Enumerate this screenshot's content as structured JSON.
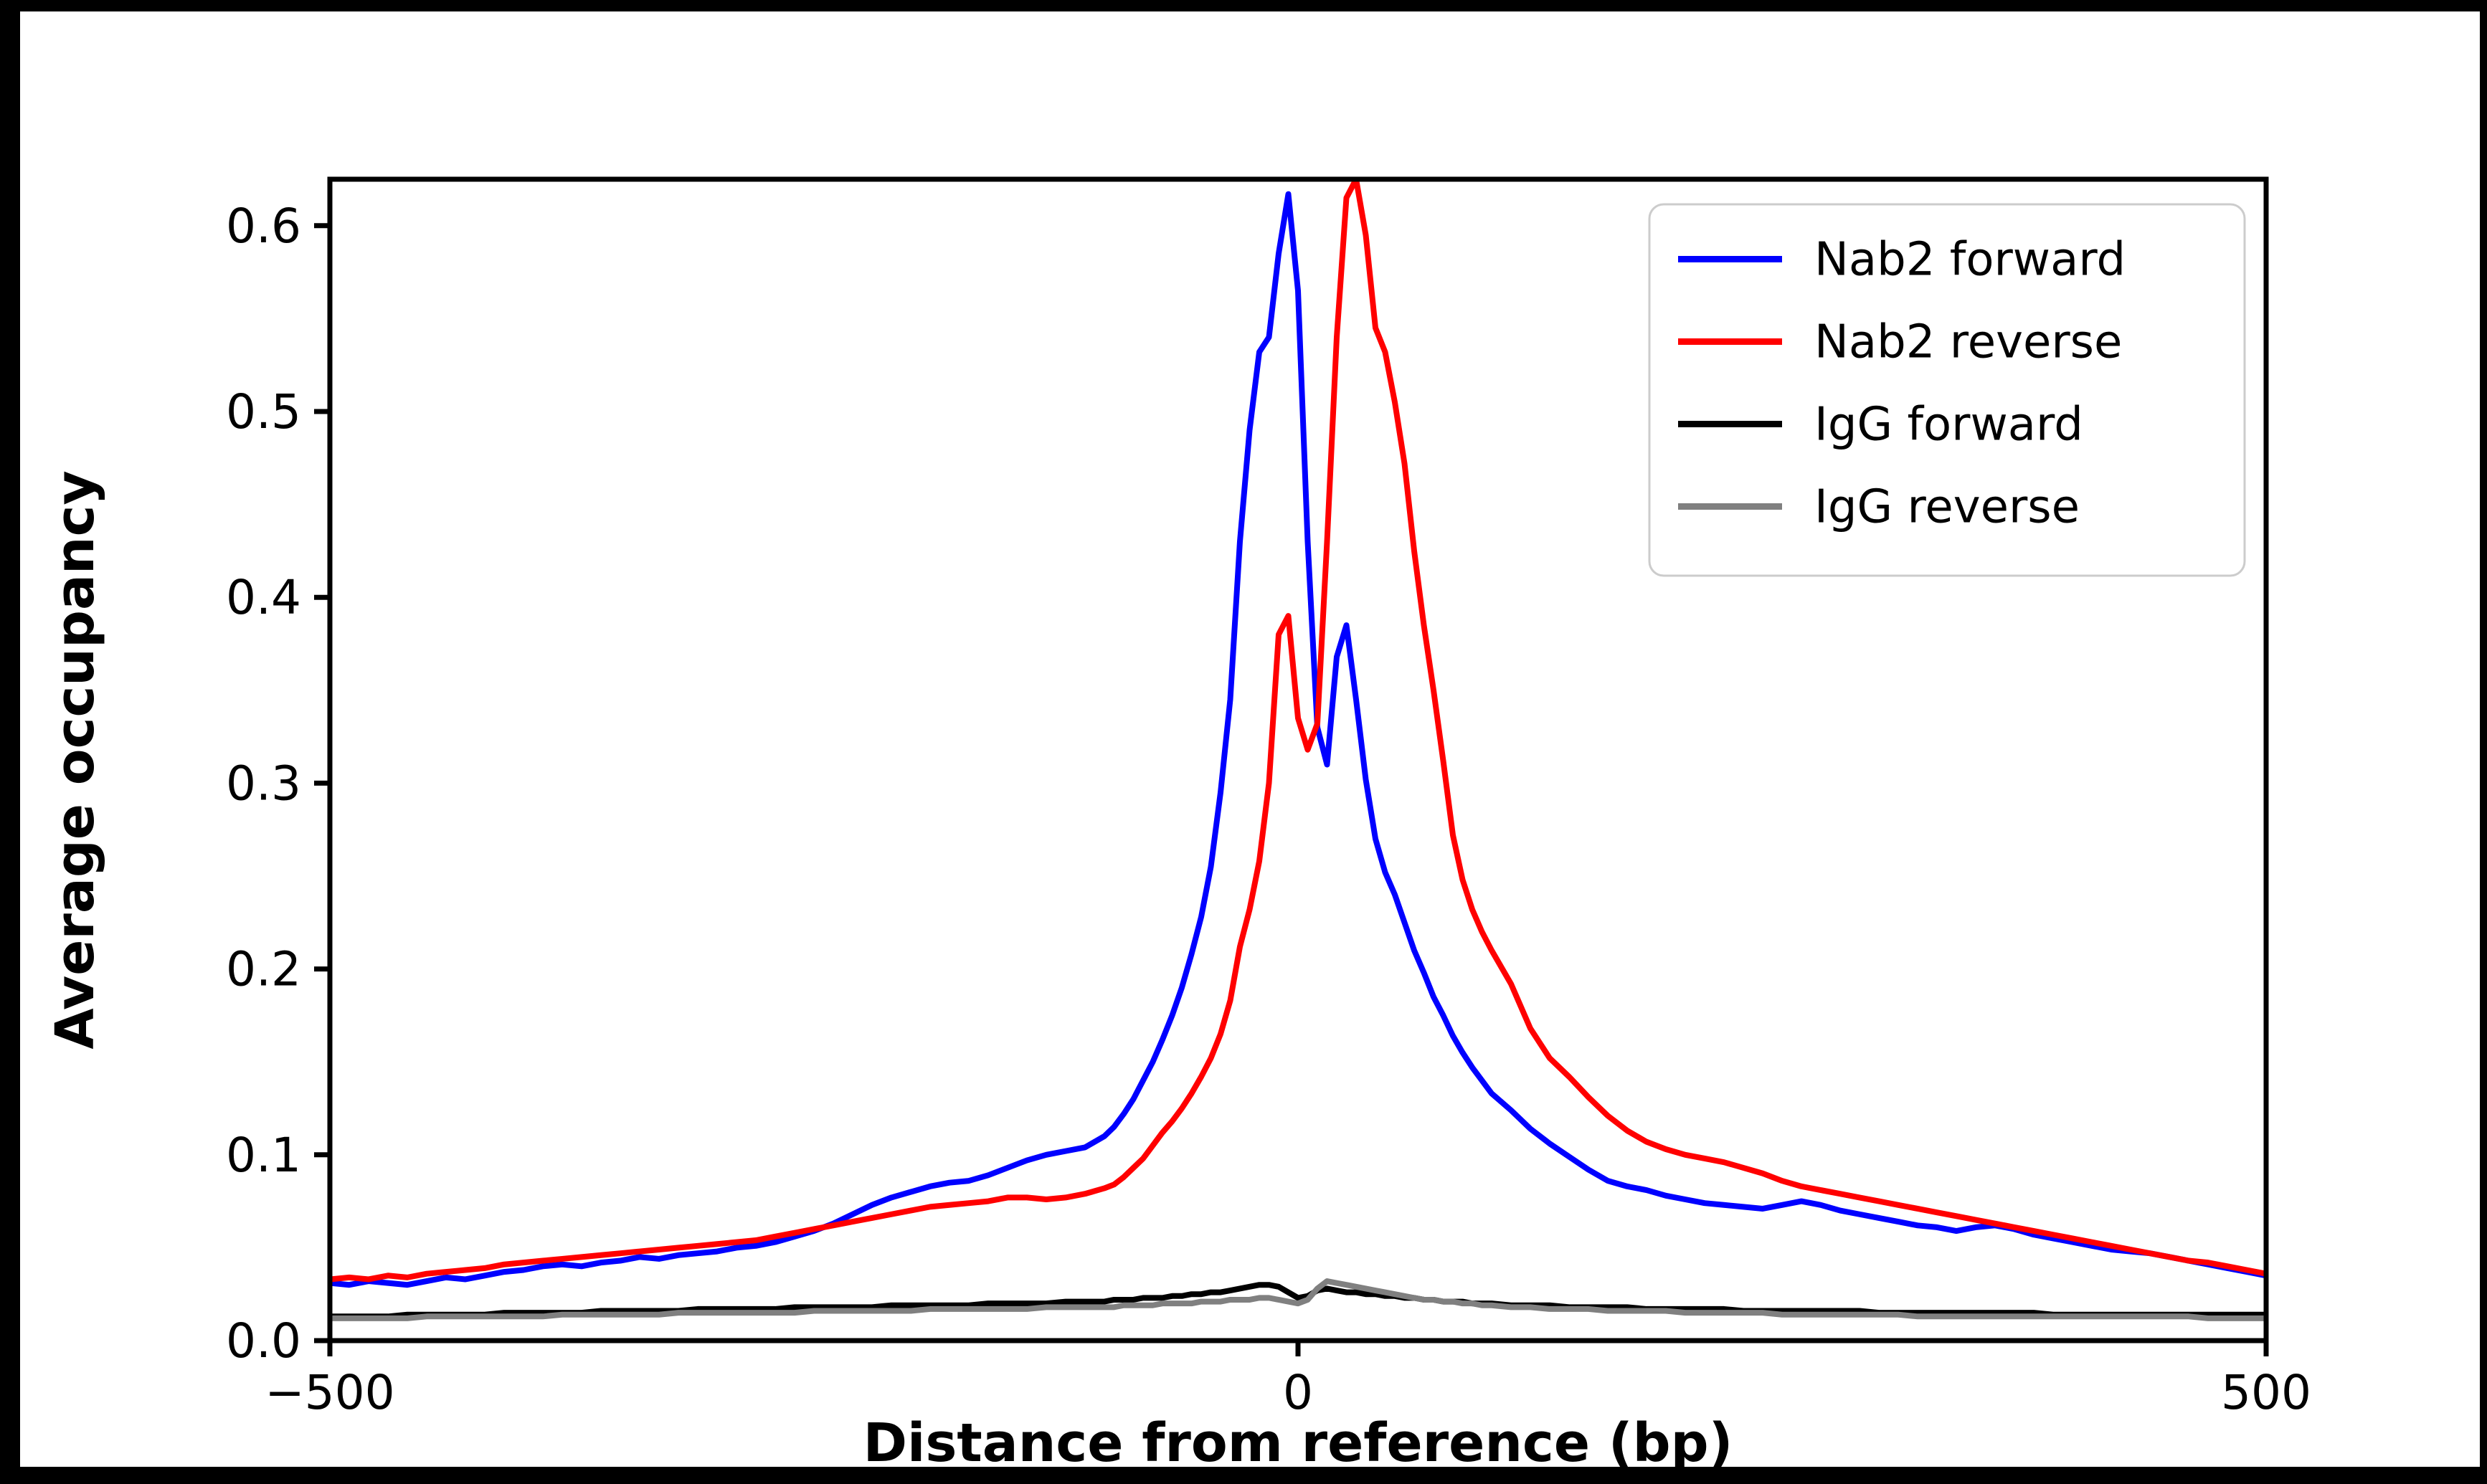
{
  "chart_data": {
    "type": "line",
    "title": "",
    "xlabel": "Distance from reference (bp)",
    "ylabel": "Average occupancy",
    "xlim": [
      -500,
      500
    ],
    "ylim": [
      0,
      0.625
    ],
    "grid": false,
    "legend_position": "upper right",
    "axis_color": "#000000",
    "legend_border_color": "#cccccc",
    "xticks": {
      "values": [
        -500,
        0,
        500
      ],
      "labels": [
        "−500",
        "0",
        "500"
      ]
    },
    "yticks": {
      "values": [
        0.0,
        0.1,
        0.2,
        0.3,
        0.4,
        0.5,
        0.6
      ],
      "labels": [
        "0.0",
        "0.1",
        "0.2",
        "0.3",
        "0.4",
        "0.5",
        "0.6"
      ]
    },
    "x": [
      -500,
      -490,
      -480,
      -470,
      -460,
      -450,
      -440,
      -430,
      -420,
      -410,
      -400,
      -390,
      -380,
      -370,
      -360,
      -350,
      -340,
      -330,
      -320,
      -310,
      -300,
      -290,
      -280,
      -270,
      -260,
      -250,
      -240,
      -230,
      -220,
      -210,
      -200,
      -190,
      -180,
      -170,
      -160,
      -150,
      -140,
      -130,
      -120,
      -110,
      -100,
      -95,
      -90,
      -85,
      -80,
      -75,
      -70,
      -65,
      -60,
      -55,
      -50,
      -45,
      -40,
      -35,
      -30,
      -25,
      -20,
      -15,
      -10,
      -5,
      0,
      5,
      10,
      15,
      20,
      25,
      30,
      35,
      40,
      45,
      50,
      55,
      60,
      65,
      70,
      75,
      80,
      85,
      90,
      95,
      100,
      110,
      120,
      130,
      140,
      150,
      160,
      170,
      180,
      190,
      200,
      210,
      220,
      230,
      240,
      250,
      260,
      270,
      280,
      290,
      300,
      310,
      320,
      330,
      340,
      350,
      360,
      370,
      380,
      390,
      400,
      410,
      420,
      430,
      440,
      450,
      460,
      470,
      480,
      490,
      500
    ],
    "series": [
      {
        "name": "Nab2 forward",
        "color": "#0000ff",
        "values": [
          0.031,
          0.03,
          0.032,
          0.031,
          0.03,
          0.032,
          0.034,
          0.033,
          0.035,
          0.037,
          0.038,
          0.04,
          0.041,
          0.04,
          0.042,
          0.043,
          0.045,
          0.044,
          0.046,
          0.047,
          0.048,
          0.05,
          0.051,
          0.053,
          0.056,
          0.059,
          0.063,
          0.068,
          0.073,
          0.077,
          0.08,
          0.083,
          0.085,
          0.086,
          0.089,
          0.093,
          0.097,
          0.1,
          0.102,
          0.104,
          0.11,
          0.115,
          0.122,
          0.13,
          0.14,
          0.15,
          0.162,
          0.175,
          0.19,
          0.208,
          0.228,
          0.255,
          0.295,
          0.345,
          0.43,
          0.49,
          0.532,
          0.54,
          0.585,
          0.617,
          0.565,
          0.43,
          0.33,
          0.31,
          0.368,
          0.385,
          0.345,
          0.302,
          0.27,
          0.252,
          0.24,
          0.225,
          0.21,
          0.198,
          0.185,
          0.175,
          0.164,
          0.155,
          0.147,
          0.14,
          0.133,
          0.124,
          0.114,
          0.106,
          0.099,
          0.092,
          0.086,
          0.083,
          0.081,
          0.078,
          0.076,
          0.074,
          0.073,
          0.072,
          0.071,
          0.073,
          0.075,
          0.073,
          0.07,
          0.068,
          0.066,
          0.064,
          0.062,
          0.061,
          0.059,
          0.061,
          0.062,
          0.06,
          0.057,
          0.055,
          0.053,
          0.051,
          0.049,
          0.048,
          0.047,
          0.045,
          0.043,
          0.041,
          0.039,
          0.037,
          0.035
        ]
      },
      {
        "name": "Nab2 reverse",
        "color": "#ff0000",
        "values": [
          0.033,
          0.034,
          0.033,
          0.035,
          0.034,
          0.036,
          0.037,
          0.038,
          0.039,
          0.041,
          0.042,
          0.043,
          0.044,
          0.045,
          0.046,
          0.047,
          0.048,
          0.049,
          0.05,
          0.051,
          0.052,
          0.053,
          0.054,
          0.056,
          0.058,
          0.06,
          0.062,
          0.064,
          0.066,
          0.068,
          0.07,
          0.072,
          0.073,
          0.074,
          0.075,
          0.077,
          0.077,
          0.076,
          0.077,
          0.079,
          0.082,
          0.084,
          0.088,
          0.093,
          0.098,
          0.105,
          0.112,
          0.118,
          0.125,
          0.133,
          0.142,
          0.152,
          0.165,
          0.183,
          0.212,
          0.232,
          0.258,
          0.3,
          0.38,
          0.39,
          0.335,
          0.318,
          0.332,
          0.43,
          0.54,
          0.615,
          0.625,
          0.595,
          0.545,
          0.532,
          0.505,
          0.472,
          0.425,
          0.385,
          0.35,
          0.312,
          0.272,
          0.248,
          0.232,
          0.22,
          0.21,
          0.192,
          0.168,
          0.152,
          0.142,
          0.131,
          0.121,
          0.113,
          0.107,
          0.103,
          0.1,
          0.098,
          0.096,
          0.093,
          0.09,
          0.086,
          0.083,
          0.081,
          0.079,
          0.077,
          0.075,
          0.073,
          0.071,
          0.069,
          0.067,
          0.065,
          0.063,
          0.061,
          0.059,
          0.057,
          0.055,
          0.053,
          0.051,
          0.049,
          0.047,
          0.045,
          0.043,
          0.042,
          0.04,
          0.038,
          0.036
        ]
      },
      {
        "name": "IgG forward",
        "color": "#000000",
        "values": [
          0.013,
          0.013,
          0.013,
          0.013,
          0.014,
          0.014,
          0.014,
          0.014,
          0.014,
          0.015,
          0.015,
          0.015,
          0.015,
          0.015,
          0.016,
          0.016,
          0.016,
          0.016,
          0.016,
          0.017,
          0.017,
          0.017,
          0.017,
          0.017,
          0.018,
          0.018,
          0.018,
          0.018,
          0.018,
          0.019,
          0.019,
          0.019,
          0.019,
          0.019,
          0.02,
          0.02,
          0.02,
          0.02,
          0.021,
          0.021,
          0.021,
          0.022,
          0.022,
          0.022,
          0.023,
          0.023,
          0.023,
          0.024,
          0.024,
          0.025,
          0.025,
          0.026,
          0.026,
          0.027,
          0.028,
          0.029,
          0.03,
          0.03,
          0.029,
          0.026,
          0.023,
          0.024,
          0.027,
          0.028,
          0.027,
          0.026,
          0.026,
          0.025,
          0.025,
          0.024,
          0.024,
          0.023,
          0.023,
          0.022,
          0.022,
          0.021,
          0.021,
          0.021,
          0.02,
          0.02,
          0.02,
          0.019,
          0.019,
          0.019,
          0.018,
          0.018,
          0.018,
          0.018,
          0.017,
          0.017,
          0.017,
          0.017,
          0.017,
          0.016,
          0.016,
          0.016,
          0.016,
          0.016,
          0.016,
          0.016,
          0.015,
          0.015,
          0.015,
          0.015,
          0.015,
          0.015,
          0.015,
          0.015,
          0.015,
          0.014,
          0.014,
          0.014,
          0.014,
          0.014,
          0.014,
          0.014,
          0.014,
          0.014,
          0.014,
          0.014,
          0.014
        ]
      },
      {
        "name": "IgG reverse",
        "color": "#808080",
        "values": [
          0.012,
          0.012,
          0.012,
          0.012,
          0.012,
          0.013,
          0.013,
          0.013,
          0.013,
          0.013,
          0.013,
          0.013,
          0.014,
          0.014,
          0.014,
          0.014,
          0.014,
          0.014,
          0.015,
          0.015,
          0.015,
          0.015,
          0.015,
          0.015,
          0.015,
          0.016,
          0.016,
          0.016,
          0.016,
          0.016,
          0.016,
          0.017,
          0.017,
          0.017,
          0.017,
          0.017,
          0.017,
          0.018,
          0.018,
          0.018,
          0.018,
          0.018,
          0.019,
          0.019,
          0.019,
          0.019,
          0.02,
          0.02,
          0.02,
          0.02,
          0.021,
          0.021,
          0.021,
          0.022,
          0.022,
          0.022,
          0.023,
          0.023,
          0.022,
          0.021,
          0.02,
          0.022,
          0.028,
          0.032,
          0.031,
          0.03,
          0.029,
          0.028,
          0.027,
          0.026,
          0.025,
          0.024,
          0.023,
          0.022,
          0.022,
          0.021,
          0.021,
          0.02,
          0.02,
          0.019,
          0.019,
          0.018,
          0.018,
          0.017,
          0.017,
          0.017,
          0.016,
          0.016,
          0.016,
          0.016,
          0.015,
          0.015,
          0.015,
          0.015,
          0.015,
          0.014,
          0.014,
          0.014,
          0.014,
          0.014,
          0.014,
          0.014,
          0.013,
          0.013,
          0.013,
          0.013,
          0.013,
          0.013,
          0.013,
          0.013,
          0.013,
          0.013,
          0.013,
          0.013,
          0.013,
          0.013,
          0.013,
          0.012,
          0.012,
          0.012,
          0.012
        ]
      }
    ]
  }
}
